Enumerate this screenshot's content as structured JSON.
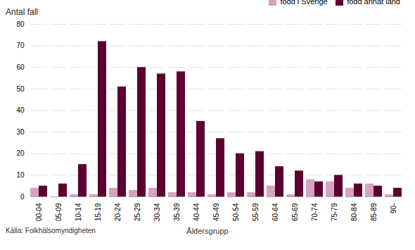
{
  "chart_data": {
    "type": "bar",
    "categories": [
      "00-04",
      "05-09",
      "10-14",
      "15-19",
      "20-24",
      "25-29",
      "30-34",
      "35-39",
      "40-44",
      "45-49",
      "50-54",
      "55-59",
      "60-64",
      "65-69",
      "70-74",
      "75-79",
      "80-84",
      "85-89",
      "90-"
    ],
    "series": [
      {
        "name": "född i Sverige",
        "color": "#d9a0c0",
        "values": [
          4,
          0,
          1,
          1,
          4,
          3,
          4,
          2,
          2,
          1,
          2,
          2,
          5,
          1,
          8,
          7,
          4,
          6,
          1
        ]
      },
      {
        "name": "född annat land",
        "color": "#5c0030",
        "values": [
          5,
          6,
          15,
          72,
          51,
          60,
          57,
          58,
          35,
          27,
          20,
          21,
          14,
          12,
          7,
          10,
          6,
          5,
          4
        ]
      }
    ],
    "ylabel": "Antal fall",
    "xlabel": "Åldersgrupp",
    "source": "Källa: Folkhälsomyndigheten",
    "ylim": [
      0,
      80
    ],
    "yticks": [
      0,
      10,
      20,
      30,
      40,
      50,
      60,
      70,
      80
    ],
    "grid": true,
    "legend": "top-right"
  }
}
